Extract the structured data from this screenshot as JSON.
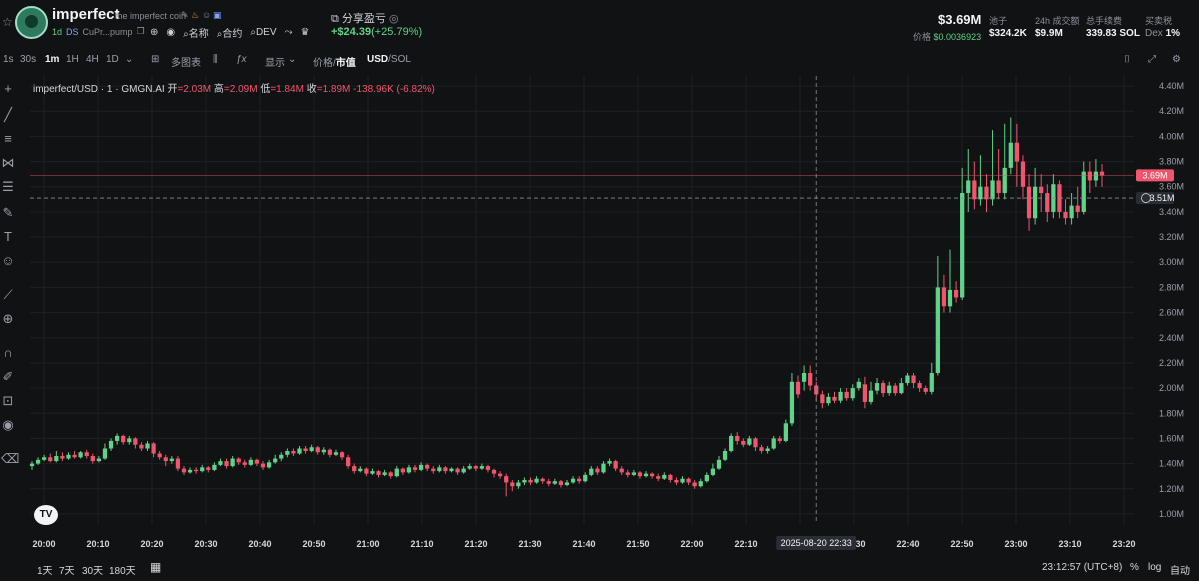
{
  "header": {
    "token_name": "imperfect",
    "token_full": "the imperfect coin",
    "age": "1d",
    "ds": "DS",
    "address": "CuPr...pump",
    "name_label": "名称",
    "contract_label": "合约",
    "dev_label": "DEV",
    "share_label": "分享盈亏",
    "pnl_value": "+$24.39",
    "pnl_pct": "(+25.79%)",
    "market_cap": "$3.69M",
    "price_label": "价格",
    "price_value": "$0.0036923",
    "pool_label": "池子",
    "pool_value": "$324.2K",
    "volume_label": "24h 成交额",
    "volume_value": "$9.9M",
    "fee_label": "总手续费",
    "fee_value": "339.83 SOL",
    "tax_label": "买卖税",
    "tax_prefix": "Dex",
    "tax_value": "1%"
  },
  "toolbar": {
    "intervals": [
      "1s",
      "30s",
      "1m",
      "1H",
      "4H",
      "1D"
    ],
    "active_interval": "1m",
    "multi_chart": "多图表",
    "display": "显示",
    "price_label": "价格",
    "mcap_label": "市值",
    "usd_label": "USD",
    "sol_label": "SOL"
  },
  "legend": {
    "symbol": "imperfect/USD · 1 · GMGN.AI",
    "open_label": "开",
    "open": "=2.03M",
    "high_label": "高",
    "high": "=2.09M",
    "low_label": "低",
    "low": "=1.84M",
    "close_label": "收",
    "close": "=1.89M",
    "change": "-138.96K (-6.82%)"
  },
  "bottom": {
    "ranges": [
      "1天",
      "7天",
      "30天",
      "180天"
    ],
    "time": "23:12:57 (UTC+8)",
    "pct": "%",
    "log": "log",
    "auto": "自动"
  },
  "colors": {
    "up": "#5fd38a",
    "down": "#f0556d",
    "bg": "#111214",
    "grid": "#1e2024"
  },
  "chart_data": {
    "type": "candlestick",
    "y_ticks": [
      "4.40M",
      "4.20M",
      "4.00M",
      "3.80M",
      "3.60M",
      "3.40M",
      "3.20M",
      "3.00M",
      "2.80M",
      "2.60M",
      "2.40M",
      "2.20M",
      "2.00M",
      "1.80M",
      "1.60M",
      "1.40M",
      "1.20M",
      "1.00M"
    ],
    "x_ticks": [
      "20:00",
      "20:10",
      "20:20",
      "20:30",
      "20:40",
      "20:50",
      "21:00",
      "21:10",
      "21:20",
      "21:30",
      "21:40",
      "21:50",
      "22:00",
      "22:10",
      "22:20",
      "22:30",
      "22:40",
      "22:50",
      "23:00",
      "23:10",
      "23:20"
    ],
    "crosshair_time": "2025-08-20  22:33",
    "last_price_label": "3.69M",
    "crosshair_price_label": "3.51M",
    "ylim": [
      0.92,
      4.48
    ],
    "candles_mcap_m": [
      [
        1.38,
        1.4,
        1.35,
        1.42
      ],
      [
        1.4,
        1.43,
        1.39,
        1.45
      ],
      [
        1.43,
        1.45,
        1.42,
        1.47
      ],
      [
        1.45,
        1.42,
        1.41,
        1.48
      ],
      [
        1.42,
        1.46,
        1.41,
        1.5
      ],
      [
        1.46,
        1.44,
        1.42,
        1.49
      ],
      [
        1.44,
        1.47,
        1.43,
        1.49
      ],
      [
        1.47,
        1.45,
        1.44,
        1.5
      ],
      [
        1.45,
        1.49,
        1.44,
        1.5
      ],
      [
        1.49,
        1.46,
        1.44,
        1.51
      ],
      [
        1.46,
        1.42,
        1.4,
        1.48
      ],
      [
        1.42,
        1.44,
        1.41,
        1.46
      ],
      [
        1.44,
        1.52,
        1.43,
        1.56
      ],
      [
        1.52,
        1.58,
        1.5,
        1.6
      ],
      [
        1.58,
        1.62,
        1.55,
        1.64
      ],
      [
        1.62,
        1.57,
        1.55,
        1.63
      ],
      [
        1.57,
        1.6,
        1.55,
        1.62
      ],
      [
        1.6,
        1.55,
        1.52,
        1.61
      ],
      [
        1.55,
        1.52,
        1.5,
        1.57
      ],
      [
        1.52,
        1.56,
        1.5,
        1.58
      ],
      [
        1.56,
        1.48,
        1.45,
        1.57
      ],
      [
        1.48,
        1.45,
        1.43,
        1.5
      ],
      [
        1.45,
        1.42,
        1.38,
        1.47
      ],
      [
        1.42,
        1.44,
        1.4,
        1.46
      ],
      [
        1.44,
        1.36,
        1.34,
        1.46
      ],
      [
        1.36,
        1.33,
        1.31,
        1.38
      ],
      [
        1.33,
        1.35,
        1.32,
        1.37
      ],
      [
        1.35,
        1.34,
        1.32,
        1.37
      ],
      [
        1.34,
        1.37,
        1.33,
        1.39
      ],
      [
        1.37,
        1.35,
        1.33,
        1.38
      ],
      [
        1.35,
        1.39,
        1.34,
        1.41
      ],
      [
        1.39,
        1.42,
        1.38,
        1.44
      ],
      [
        1.42,
        1.38,
        1.36,
        1.44
      ],
      [
        1.38,
        1.44,
        1.37,
        1.46
      ],
      [
        1.44,
        1.41,
        1.39,
        1.45
      ],
      [
        1.41,
        1.39,
        1.37,
        1.43
      ],
      [
        1.39,
        1.43,
        1.38,
        1.45
      ],
      [
        1.43,
        1.4,
        1.38,
        1.44
      ],
      [
        1.4,
        1.37,
        1.35,
        1.42
      ],
      [
        1.37,
        1.41,
        1.36,
        1.43
      ],
      [
        1.41,
        1.44,
        1.4,
        1.47
      ],
      [
        1.44,
        1.47,
        1.42,
        1.49
      ],
      [
        1.47,
        1.5,
        1.45,
        1.52
      ],
      [
        1.5,
        1.48,
        1.46,
        1.52
      ],
      [
        1.48,
        1.52,
        1.47,
        1.54
      ],
      [
        1.52,
        1.5,
        1.48,
        1.54
      ],
      [
        1.5,
        1.53,
        1.49,
        1.55
      ],
      [
        1.53,
        1.49,
        1.47,
        1.54
      ],
      [
        1.49,
        1.51,
        1.47,
        1.53
      ],
      [
        1.51,
        1.47,
        1.45,
        1.52
      ],
      [
        1.47,
        1.49,
        1.46,
        1.51
      ],
      [
        1.49,
        1.45,
        1.43,
        1.5
      ],
      [
        1.45,
        1.38,
        1.36,
        1.47
      ],
      [
        1.38,
        1.34,
        1.32,
        1.4
      ],
      [
        1.34,
        1.36,
        1.33,
        1.38
      ],
      [
        1.36,
        1.32,
        1.3,
        1.37
      ],
      [
        1.32,
        1.34,
        1.31,
        1.36
      ],
      [
        1.34,
        1.31,
        1.29,
        1.35
      ],
      [
        1.31,
        1.33,
        1.3,
        1.35
      ],
      [
        1.33,
        1.3,
        1.28,
        1.34
      ],
      [
        1.3,
        1.36,
        1.29,
        1.38
      ],
      [
        1.36,
        1.33,
        1.31,
        1.37
      ],
      [
        1.33,
        1.37,
        1.32,
        1.39
      ],
      [
        1.37,
        1.35,
        1.33,
        1.39
      ],
      [
        1.35,
        1.39,
        1.34,
        1.41
      ],
      [
        1.39,
        1.36,
        1.34,
        1.4
      ],
      [
        1.36,
        1.34,
        1.32,
        1.38
      ],
      [
        1.34,
        1.37,
        1.33,
        1.39
      ],
      [
        1.37,
        1.34,
        1.32,
        1.38
      ],
      [
        1.34,
        1.36,
        1.33,
        1.37
      ],
      [
        1.36,
        1.33,
        1.31,
        1.37
      ],
      [
        1.33,
        1.36,
        1.32,
        1.38
      ],
      [
        1.36,
        1.38,
        1.35,
        1.4
      ],
      [
        1.38,
        1.36,
        1.34,
        1.39
      ],
      [
        1.36,
        1.38,
        1.35,
        1.4
      ],
      [
        1.38,
        1.35,
        1.33,
        1.39
      ],
      [
        1.35,
        1.32,
        1.29,
        1.36
      ],
      [
        1.32,
        1.3,
        1.28,
        1.34
      ],
      [
        1.3,
        1.25,
        1.14,
        1.32
      ],
      [
        1.25,
        1.22,
        1.18,
        1.27
      ],
      [
        1.22,
        1.25,
        1.2,
        1.27
      ],
      [
        1.25,
        1.27,
        1.23,
        1.29
      ],
      [
        1.27,
        1.25,
        1.23,
        1.29
      ],
      [
        1.25,
        1.28,
        1.24,
        1.3
      ],
      [
        1.28,
        1.26,
        1.24,
        1.29
      ],
      [
        1.26,
        1.24,
        1.22,
        1.28
      ],
      [
        1.24,
        1.26,
        1.23,
        1.28
      ],
      [
        1.26,
        1.23,
        1.21,
        1.27
      ],
      [
        1.23,
        1.25,
        1.22,
        1.27
      ],
      [
        1.25,
        1.28,
        1.24,
        1.3
      ],
      [
        1.28,
        1.26,
        1.24,
        1.3
      ],
      [
        1.26,
        1.31,
        1.25,
        1.33
      ],
      [
        1.31,
        1.36,
        1.3,
        1.38
      ],
      [
        1.36,
        1.33,
        1.31,
        1.38
      ],
      [
        1.33,
        1.4,
        1.32,
        1.42
      ],
      [
        1.4,
        1.42,
        1.38,
        1.44
      ],
      [
        1.42,
        1.36,
        1.34,
        1.43
      ],
      [
        1.36,
        1.33,
        1.31,
        1.38
      ],
      [
        1.33,
        1.31,
        1.29,
        1.35
      ],
      [
        1.31,
        1.33,
        1.3,
        1.35
      ],
      [
        1.33,
        1.3,
        1.28,
        1.34
      ],
      [
        1.3,
        1.32,
        1.29,
        1.34
      ],
      [
        1.32,
        1.3,
        1.28,
        1.33
      ],
      [
        1.3,
        1.28,
        1.26,
        1.32
      ],
      [
        1.28,
        1.31,
        1.27,
        1.33
      ],
      [
        1.31,
        1.27,
        1.25,
        1.32
      ],
      [
        1.27,
        1.25,
        1.23,
        1.29
      ],
      [
        1.25,
        1.28,
        1.24,
        1.3
      ],
      [
        1.28,
        1.25,
        1.23,
        1.29
      ],
      [
        1.25,
        1.22,
        1.2,
        1.27
      ],
      [
        1.22,
        1.26,
        1.21,
        1.28
      ],
      [
        1.26,
        1.31,
        1.25,
        1.33
      ],
      [
        1.31,
        1.36,
        1.3,
        1.4
      ],
      [
        1.36,
        1.43,
        1.35,
        1.46
      ],
      [
        1.43,
        1.5,
        1.42,
        1.52
      ],
      [
        1.5,
        1.62,
        1.49,
        1.64
      ],
      [
        1.62,
        1.58,
        1.55,
        1.65
      ],
      [
        1.58,
        1.55,
        1.53,
        1.6
      ],
      [
        1.55,
        1.6,
        1.54,
        1.62
      ],
      [
        1.6,
        1.53,
        1.5,
        1.61
      ],
      [
        1.53,
        1.5,
        1.48,
        1.55
      ],
      [
        1.5,
        1.52,
        1.48,
        1.54
      ],
      [
        1.52,
        1.6,
        1.51,
        1.62
      ],
      [
        1.6,
        1.58,
        1.56,
        1.62
      ],
      [
        1.58,
        1.72,
        1.57,
        1.75
      ],
      [
        1.72,
        2.05,
        1.7,
        2.12
      ],
      [
        2.05,
        1.95,
        1.92,
        2.1
      ],
      [
        2.05,
        2.12,
        1.98,
        2.18
      ],
      [
        2.12,
        2.02,
        1.98,
        2.18
      ],
      [
        2.02,
        1.95,
        1.9,
        2.05
      ],
      [
        1.95,
        1.88,
        1.84,
        1.98
      ],
      [
        1.88,
        1.93,
        1.86,
        1.96
      ],
      [
        1.93,
        1.9,
        1.88,
        1.97
      ],
      [
        1.9,
        1.97,
        1.88,
        2.0
      ],
      [
        1.97,
        1.92,
        1.9,
        2.0
      ],
      [
        1.92,
        2.0,
        1.9,
        2.03
      ],
      [
        2.0,
        2.05,
        1.98,
        2.08
      ],
      [
        2.03,
        1.89,
        1.84,
        2.09
      ],
      [
        1.89,
        1.98,
        1.87,
        2.05
      ],
      [
        1.98,
        2.04,
        1.95,
        2.08
      ],
      [
        2.04,
        1.96,
        1.93,
        2.06
      ],
      [
        1.96,
        2.02,
        1.94,
        2.05
      ],
      [
        2.02,
        1.96,
        1.94,
        2.04
      ],
      [
        1.96,
        2.04,
        1.95,
        2.08
      ],
      [
        2.04,
        2.1,
        2.02,
        2.12
      ],
      [
        2.1,
        2.04,
        2.0,
        2.12
      ],
      [
        2.04,
        2.0,
        1.97,
        2.06
      ],
      [
        2.0,
        1.97,
        1.95,
        2.02
      ],
      [
        1.97,
        2.12,
        1.95,
        2.2
      ],
      [
        2.12,
        2.8,
        2.1,
        3.05
      ],
      [
        2.8,
        2.65,
        2.6,
        2.9
      ],
      [
        2.65,
        2.78,
        2.6,
        3.1
      ],
      [
        2.78,
        2.72,
        2.68,
        2.85
      ],
      [
        2.72,
        3.55,
        2.7,
        3.75
      ],
      [
        3.55,
        3.65,
        3.4,
        3.9
      ],
      [
        3.65,
        3.5,
        3.42,
        3.8
      ],
      [
        3.5,
        3.6,
        3.45,
        3.85
      ],
      [
        3.6,
        3.5,
        3.4,
        3.7
      ],
      [
        3.5,
        3.65,
        3.45,
        4.05
      ],
      [
        3.65,
        3.55,
        3.5,
        3.9
      ],
      [
        3.55,
        3.75,
        3.5,
        4.1
      ],
      [
        3.75,
        3.95,
        3.7,
        4.15
      ],
      [
        3.95,
        3.8,
        3.6,
        4.1
      ],
      [
        3.8,
        3.6,
        3.5,
        3.85
      ],
      [
        3.6,
        3.35,
        3.25,
        3.7
      ],
      [
        3.35,
        3.6,
        3.3,
        3.75
      ],
      [
        3.6,
        3.55,
        3.4,
        3.7
      ],
      [
        3.55,
        3.4,
        3.32,
        3.62
      ],
      [
        3.4,
        3.62,
        3.35,
        3.7
      ],
      [
        3.62,
        3.4,
        3.35,
        3.65
      ],
      [
        3.4,
        3.35,
        3.3,
        3.5
      ],
      [
        3.35,
        3.45,
        3.3,
        3.55
      ],
      [
        3.45,
        3.4,
        3.35,
        3.6
      ],
      [
        3.4,
        3.72,
        3.38,
        3.8
      ],
      [
        3.72,
        3.65,
        3.55,
        3.8
      ],
      [
        3.65,
        3.72,
        3.6,
        3.82
      ],
      [
        3.72,
        3.69,
        3.6,
        3.78
      ]
    ]
  }
}
